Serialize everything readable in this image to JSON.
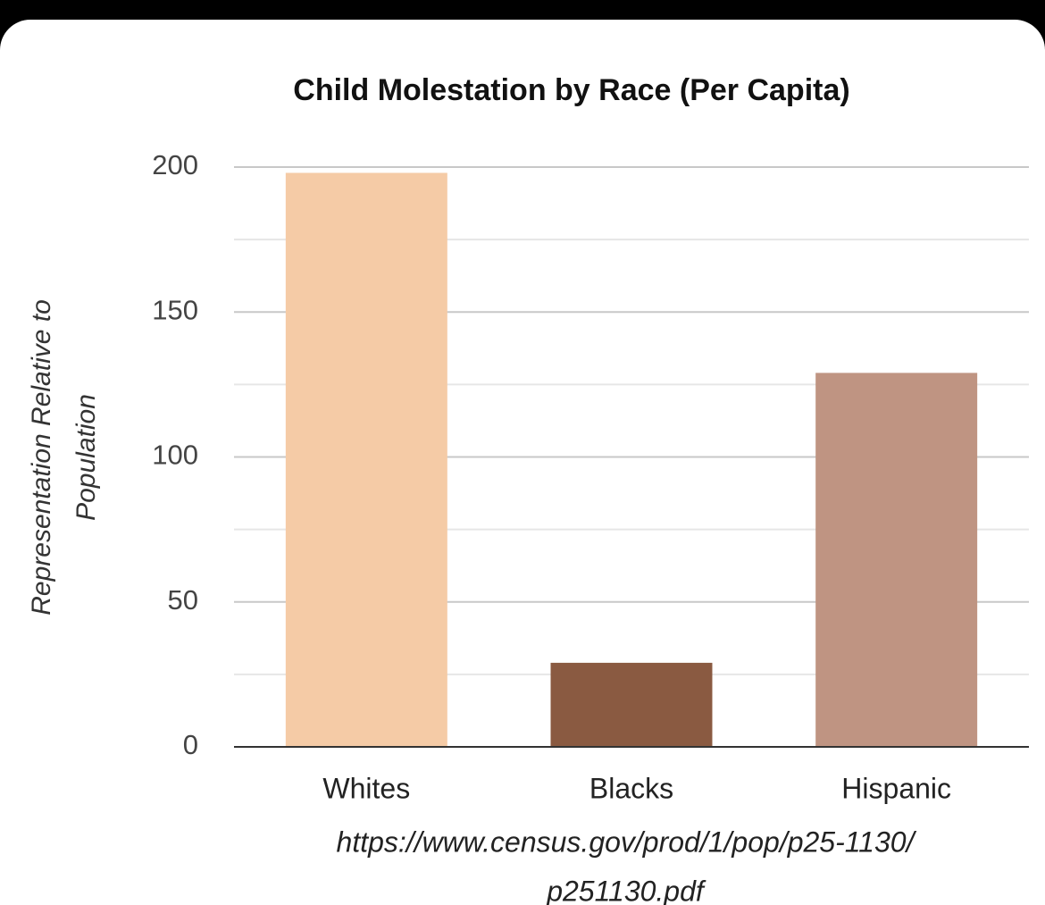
{
  "chart_data": {
    "type": "bar",
    "title": "Child Molestation by Race (Per Capita)",
    "y_label": [
      "Representation Relative to",
      "Population"
    ],
    "categories": [
      "Whites",
      "Blacks",
      "Hispanic"
    ],
    "values": [
      198,
      29,
      129
    ],
    "colors": [
      "#f5cba6",
      "#8a5a41",
      "#bf9482"
    ],
    "ylim": [
      0,
      200
    ],
    "yticks": [
      0,
      50,
      100,
      150,
      200
    ],
    "minor_yticks": [
      25,
      75,
      125,
      175
    ],
    "grid": true,
    "source": [
      "https://www.census.gov/prod/1/pop/p25-1130/",
      "p251130.pdf"
    ]
  }
}
